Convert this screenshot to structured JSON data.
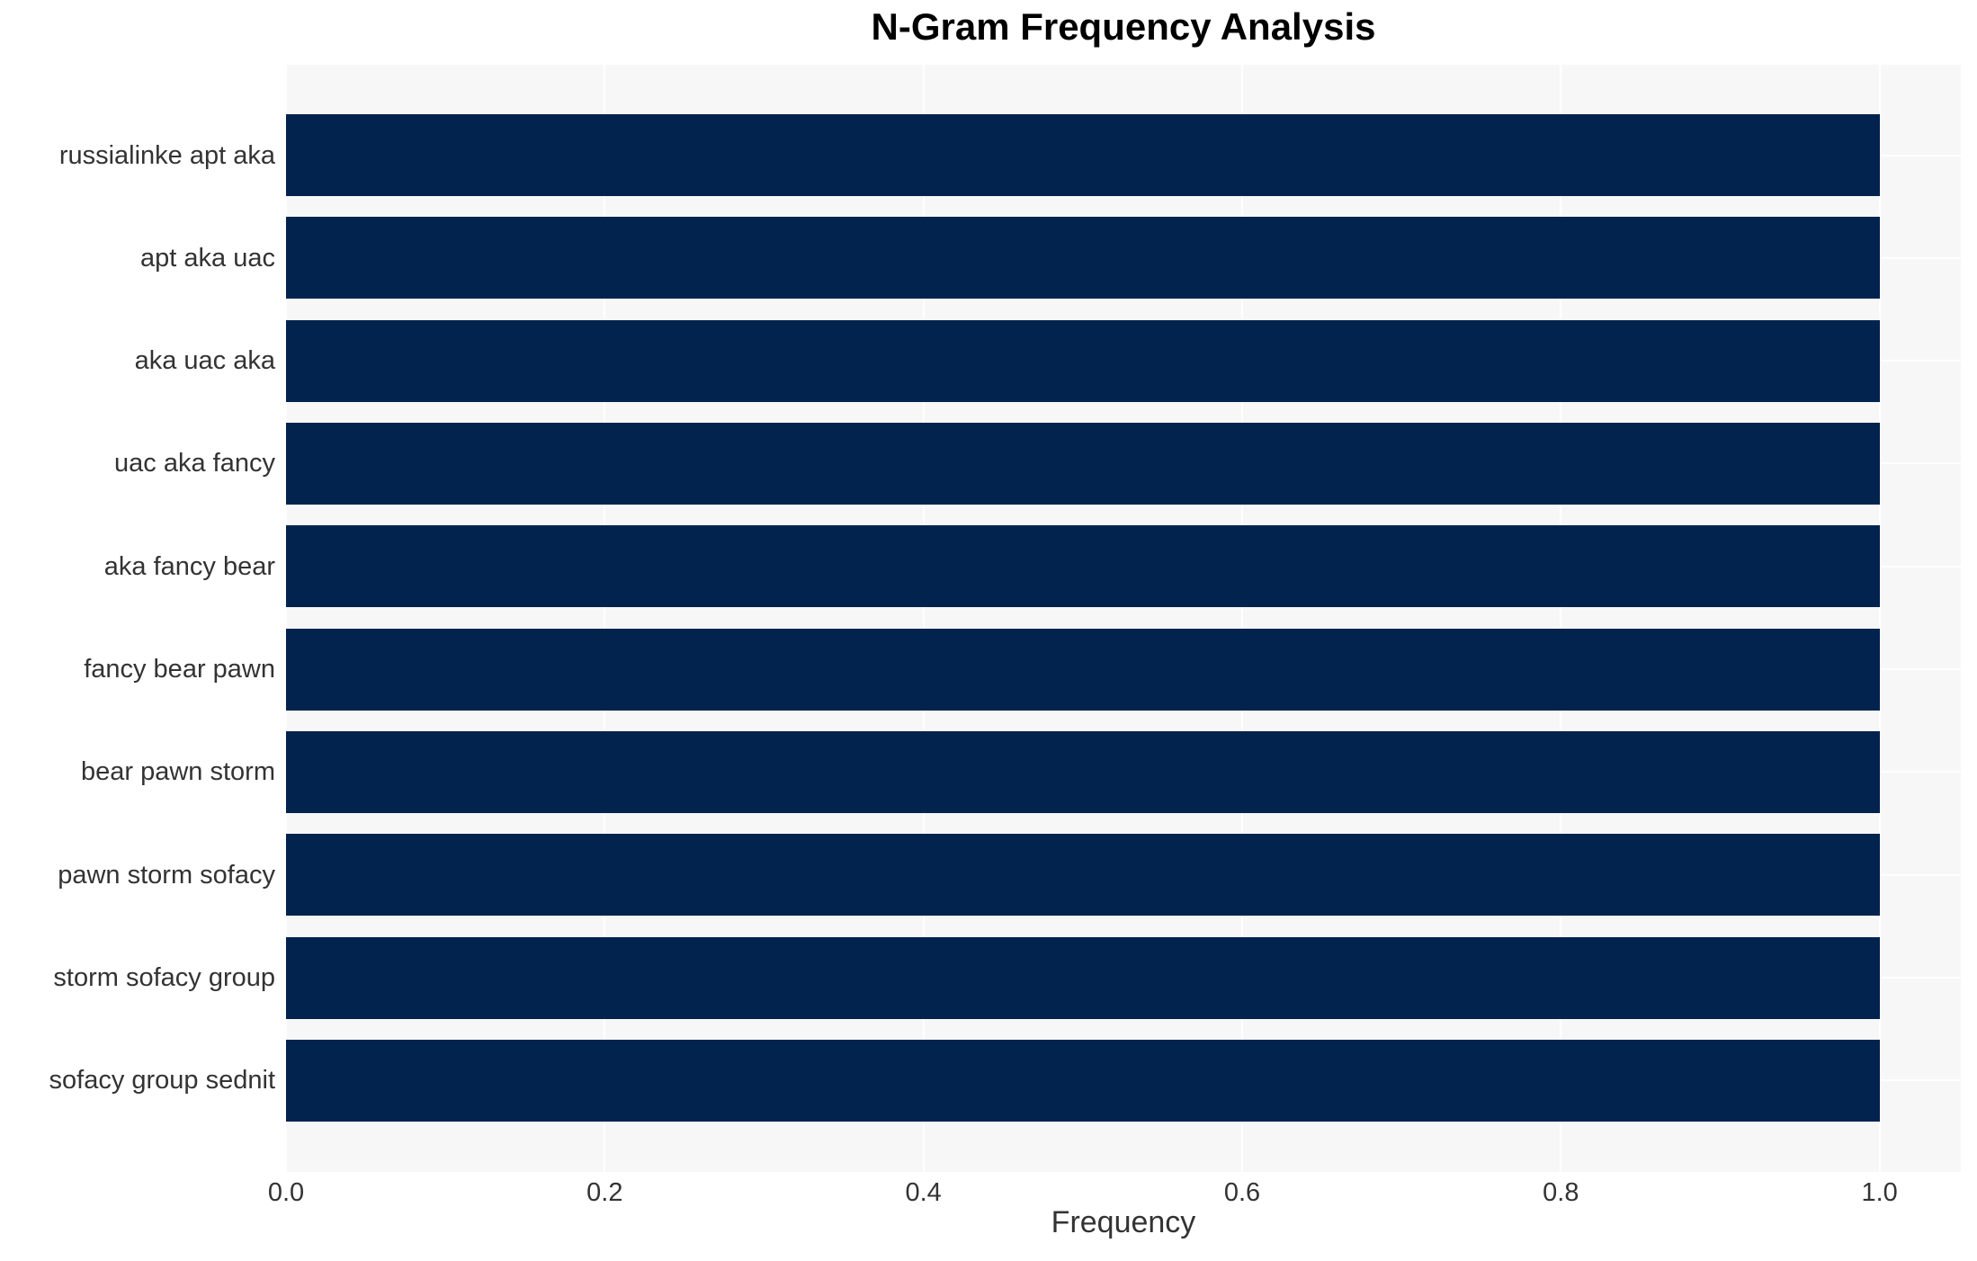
{
  "chart_data": {
    "type": "bar",
    "orientation": "horizontal",
    "title": "N-Gram Frequency Analysis",
    "xlabel": "Frequency",
    "ylabel": "",
    "categories": [
      "russialinke apt aka",
      "apt aka uac",
      "aka uac aka",
      "uac aka fancy",
      "aka fancy bear",
      "fancy bear pawn",
      "bear pawn storm",
      "pawn storm sofacy",
      "storm sofacy group",
      "sofacy group sednit"
    ],
    "values": [
      1.0,
      1.0,
      1.0,
      1.0,
      1.0,
      1.0,
      1.0,
      1.0,
      1.0,
      1.0
    ],
    "xlim": [
      0,
      1.051
    ],
    "xticks": [
      0.0,
      0.2,
      0.4,
      0.6,
      0.8,
      1.0
    ],
    "xtick_labels": [
      "0.0",
      "0.2",
      "0.4",
      "0.6",
      "0.8",
      "1.0"
    ],
    "grid": true,
    "legend": "none",
    "colors": {
      "bar": "#02234d",
      "plot_background": "#f7f7f8",
      "figure_background": "#ffffff",
      "gridline": "#ffffff",
      "tick_text": "#333333",
      "title_text": "#000000"
    }
  }
}
